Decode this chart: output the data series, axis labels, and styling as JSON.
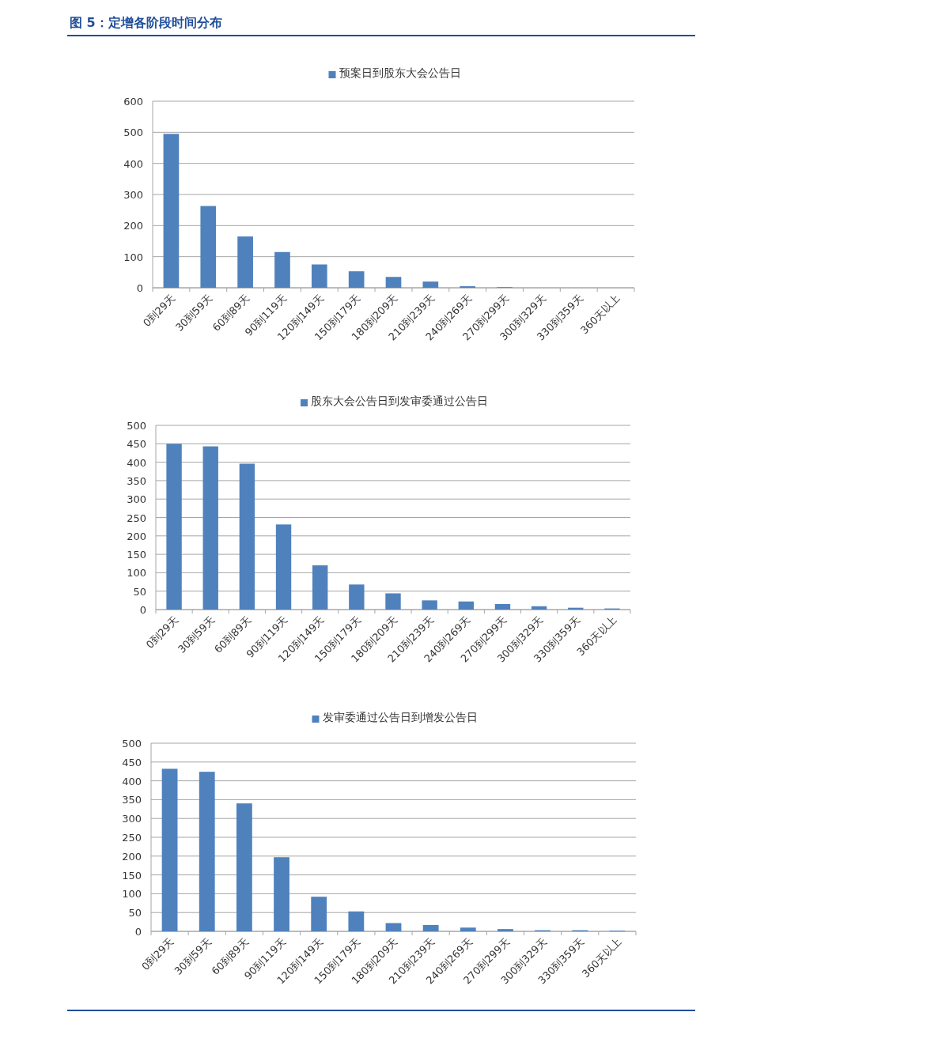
{
  "chart_data": [
    {
      "type": "bar",
      "title": "图 5：定增各阶段时间分布",
      "categories": [
        "0到29天",
        "30到59天",
        "60到89天",
        "90到119天",
        "120到149天",
        "150到179天",
        "180到209天",
        "210到239天",
        "240到269天",
        "270到299天",
        "300到329天",
        "330到359天",
        "360天以上"
      ],
      "series": [
        {
          "name": "预案日到股东大会公告日",
          "color": "#4f81bd",
          "values": [
            495,
            263,
            165,
            115,
            75,
            53,
            35,
            20,
            5,
            2,
            0,
            0,
            0
          ]
        }
      ],
      "ylim": [
        0,
        600
      ],
      "yticks": [
        0,
        100,
        200,
        300,
        400,
        500,
        600
      ],
      "grid": "y",
      "legend": "top"
    },
    {
      "type": "bar",
      "categories": [
        "0到29天",
        "30到59天",
        "60到89天",
        "90到119天",
        "120到149天",
        "150到179天",
        "180到209天",
        "210到239天",
        "240到269天",
        "270到299天",
        "300到329天",
        "330到359天",
        "360天以上"
      ],
      "series": [
        {
          "name": "股东大会公告日到发审委通过公告日",
          "color": "#4f81bd",
          "values": [
            450,
            443,
            396,
            231,
            120,
            68,
            44,
            25,
            22,
            15,
            9,
            5,
            3
          ]
        }
      ],
      "ylim": [
        0,
        500
      ],
      "yticks": [
        0,
        50,
        100,
        150,
        200,
        250,
        300,
        350,
        400,
        450,
        500
      ],
      "grid": "y",
      "legend": "top"
    },
    {
      "type": "bar",
      "categories": [
        "0到29天",
        "30到59天",
        "60到89天",
        "90到119天",
        "120到149天",
        "150到179天",
        "180到209天",
        "210到239天",
        "240到269天",
        "270到299天",
        "300到329天",
        "330到359天",
        "360天以上"
      ],
      "series": [
        {
          "name": "发审委通过公告日到增发公告日",
          "color": "#4f81bd",
          "values": [
            432,
            424,
            340,
            197,
            92,
            53,
            22,
            17,
            10,
            6,
            3,
            3,
            2
          ]
        }
      ],
      "ylim": [
        0,
        500
      ],
      "yticks": [
        0,
        50,
        100,
        150,
        200,
        250,
        300,
        350,
        400,
        450,
        500
      ],
      "grid": "y",
      "legend": "top"
    }
  ]
}
